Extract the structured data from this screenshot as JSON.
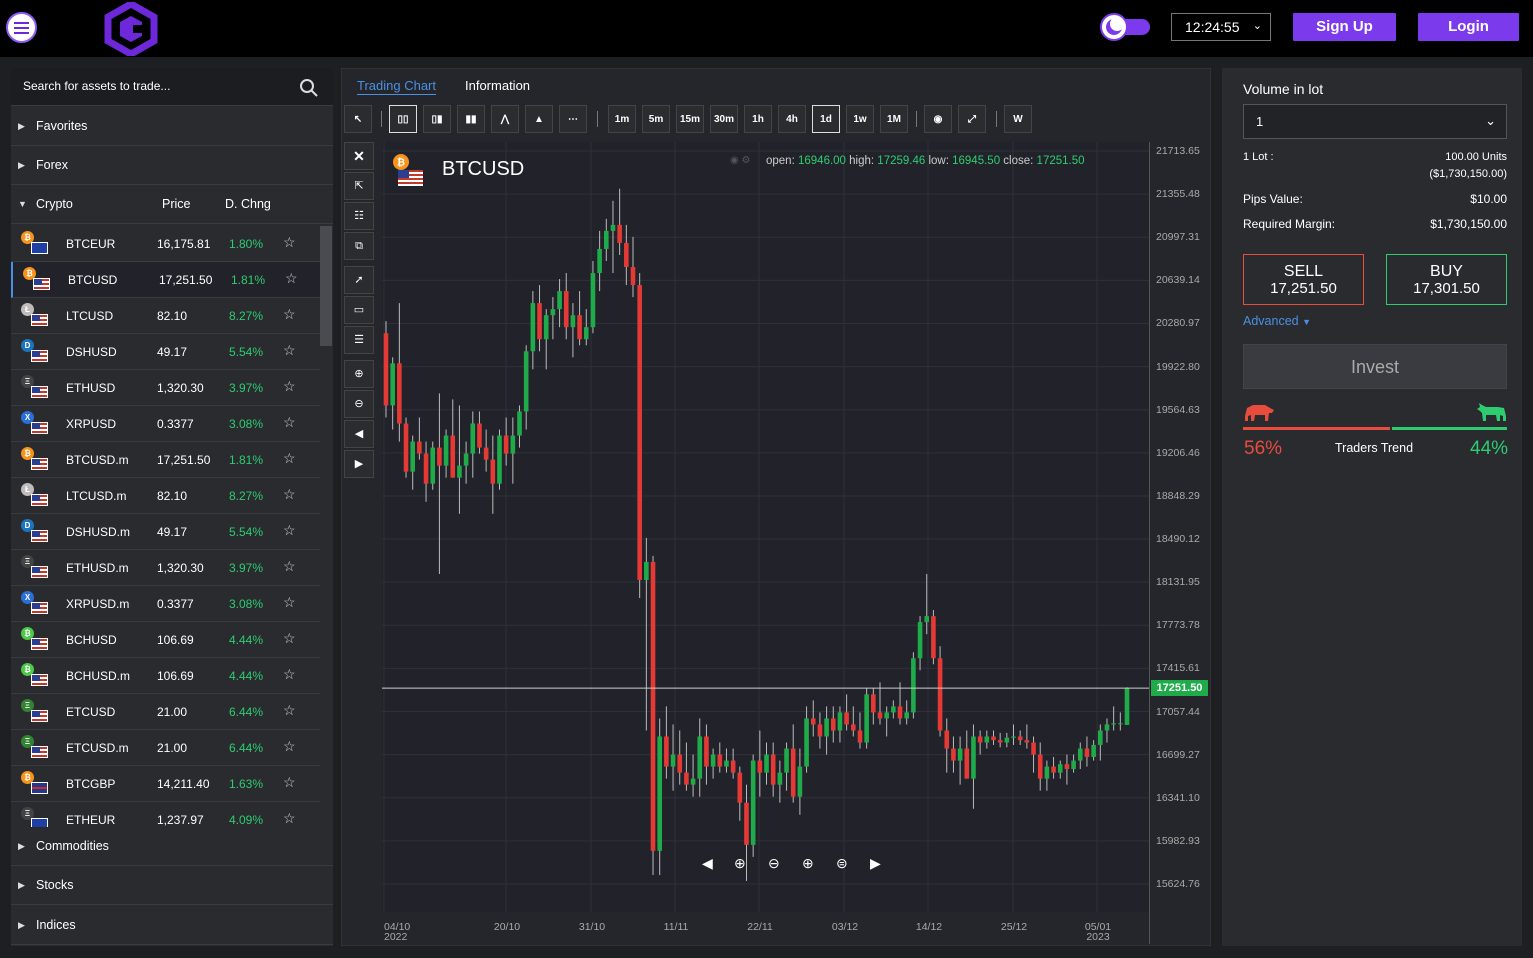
{
  "header": {
    "time": "12:24:55",
    "signup_label": "Sign Up",
    "login_label": "Login",
    "brand_color": "#7c3aed"
  },
  "sidebar": {
    "search_placeholder": "Search for assets to trade...",
    "categories_top": [
      "Favorites",
      "Forex"
    ],
    "crypto": {
      "label": "Crypto",
      "price_header": "Price",
      "change_header": "D. Chng"
    },
    "categories_bottom": [
      "Commodities",
      "Stocks",
      "Indices"
    ],
    "assets": [
      {
        "symbol": "BTCEUR",
        "price": "16,175.81",
        "change": "1.80%",
        "coin": "bitcoin",
        "flag": "eu"
      },
      {
        "symbol": "BTCUSD",
        "price": "17,251.50",
        "change": "1.81%",
        "coin": "bitcoin",
        "flag": "us"
      },
      {
        "symbol": "LTCUSD",
        "price": "82.10",
        "change": "8.27%",
        "coin": "litecoin",
        "flag": "us"
      },
      {
        "symbol": "DSHUSD",
        "price": "49.17",
        "change": "5.54%",
        "coin": "dash",
        "flag": "us"
      },
      {
        "symbol": "ETHUSD",
        "price": "1,320.30",
        "change": "3.97%",
        "coin": "ethereum",
        "flag": "us"
      },
      {
        "symbol": "XRPUSD",
        "price": "0.3377",
        "change": "3.08%",
        "coin": "ripple",
        "flag": "us"
      },
      {
        "symbol": "BTCUSD.m",
        "price": "17,251.50",
        "change": "1.81%",
        "coin": "bitcoin",
        "flag": "us"
      },
      {
        "symbol": "LTCUSD.m",
        "price": "82.10",
        "change": "8.27%",
        "coin": "litecoin",
        "flag": "us"
      },
      {
        "symbol": "DSHUSD.m",
        "price": "49.17",
        "change": "5.54%",
        "coin": "dash",
        "flag": "us"
      },
      {
        "symbol": "ETHUSD.m",
        "price": "1,320.30",
        "change": "3.97%",
        "coin": "ethereum",
        "flag": "us"
      },
      {
        "symbol": "XRPUSD.m",
        "price": "0.3377",
        "change": "3.08%",
        "coin": "ripple",
        "flag": "us"
      },
      {
        "symbol": "BCHUSD",
        "price": "106.69",
        "change": "4.44%",
        "coin": "bitcoin-cash",
        "flag": "us"
      },
      {
        "symbol": "BCHUSD.m",
        "price": "106.69",
        "change": "4.44%",
        "coin": "bitcoin-cash",
        "flag": "us"
      },
      {
        "symbol": "ETCUSD",
        "price": "21.00",
        "change": "6.44%",
        "coin": "ethereum-classic",
        "flag": "us"
      },
      {
        "symbol": "ETCUSD.m",
        "price": "21.00",
        "change": "6.44%",
        "coin": "ethereum-classic",
        "flag": "us"
      },
      {
        "symbol": "BTCGBP",
        "price": "14,211.40",
        "change": "1.63%",
        "coin": "bitcoin",
        "flag": "gb"
      },
      {
        "symbol": "ETHEUR",
        "price": "1,237.97",
        "change": "4.09%",
        "coin": "ethereum",
        "flag": "eu"
      }
    ]
  },
  "chart_panel": {
    "tabs": [
      "Trading Chart",
      "Information"
    ],
    "timeframes": [
      "1m",
      "5m",
      "15m",
      "30m",
      "1h",
      "4h",
      "1d",
      "1w",
      "1M"
    ],
    "active_timeframe": "1d",
    "w_button": "W",
    "symbol": "BTCUSD",
    "ohlc": {
      "open_label": "open:",
      "open": "16946.00",
      "high_label": "high:",
      "high": "17259.46",
      "low_label": "low:",
      "low": "16945.50",
      "close_label": "close:",
      "close": "17251.50"
    }
  },
  "chart_data": {
    "type": "candlestick",
    "y_ticks": [
      "21713.65",
      "21355.48",
      "20997.31",
      "20639.14",
      "20280.97",
      "19922.80",
      "19564.63",
      "19206.46",
      "18848.29",
      "18490.12",
      "18131.95",
      "17773.78",
      "17415.61",
      "17057.44",
      "16699.27",
      "16341.10",
      "15982.93",
      "15624.76"
    ],
    "x_ticks": [
      [
        "04/10",
        "2022"
      ],
      [
        "20/10",
        ""
      ],
      [
        "31/10",
        ""
      ],
      [
        "11/11",
        ""
      ],
      [
        "22/11",
        ""
      ],
      [
        "03/12",
        ""
      ],
      [
        "14/12",
        ""
      ],
      [
        "25/12",
        ""
      ],
      [
        "05/01",
        "2023"
      ]
    ],
    "ylim": [
      15500,
      21800
    ],
    "last_price": "17251.50",
    "candles": [
      [
        20200,
        20300,
        19500,
        19600
      ],
      [
        19600,
        20000,
        19400,
        19950
      ],
      [
        19950,
        20450,
        19300,
        19450
      ],
      [
        19450,
        19500,
        19000,
        19050
      ],
      [
        19050,
        19350,
        18900,
        19300
      ],
      [
        19300,
        19500,
        19150,
        19200
      ],
      [
        19200,
        19300,
        18800,
        18950
      ],
      [
        18950,
        19300,
        18900,
        19250
      ],
      [
        19250,
        19700,
        18200,
        19100
      ],
      [
        19100,
        19400,
        19000,
        19350
      ],
      [
        19350,
        19650,
        19000,
        19000
      ],
      [
        19000,
        19600,
        18700,
        19100
      ],
      [
        19100,
        19300,
        18950,
        19200
      ],
      [
        19200,
        19550,
        19000,
        19450
      ],
      [
        19450,
        19550,
        19200,
        19250
      ],
      [
        19250,
        19400,
        19050,
        19150
      ],
      [
        19150,
        19350,
        18700,
        18950
      ],
      [
        18950,
        19400,
        18900,
        19350
      ],
      [
        19350,
        19500,
        19100,
        19200
      ],
      [
        19200,
        19500,
        18950,
        19350
      ],
      [
        19350,
        19600,
        19250,
        19550
      ],
      [
        19550,
        20100,
        19400,
        20050
      ],
      [
        20050,
        20550,
        19900,
        20450
      ],
      [
        20450,
        20600,
        20050,
        20150
      ],
      [
        20150,
        20400,
        19900,
        20350
      ],
      [
        20350,
        20500,
        20150,
        20400
      ],
      [
        20400,
        20650,
        20250,
        20550
      ],
      [
        20550,
        20700,
        20150,
        20250
      ],
      [
        20250,
        20450,
        20000,
        20350
      ],
      [
        20350,
        20550,
        20100,
        20150
      ],
      [
        20150,
        20400,
        20100,
        20250
      ],
      [
        20250,
        20800,
        20200,
        20700
      ],
      [
        20700,
        21050,
        20550,
        20900
      ],
      [
        20900,
        21150,
        20800,
        21050
      ],
      [
        21050,
        21300,
        20700,
        21100
      ],
      [
        21100,
        21400,
        20850,
        20950
      ],
      [
        20950,
        21100,
        20600,
        20750
      ],
      [
        20750,
        21000,
        20500,
        20600
      ],
      [
        20600,
        20700,
        18000,
        18150
      ],
      [
        18150,
        18500,
        16900,
        18300
      ],
      [
        18300,
        18350,
        15700,
        15900
      ],
      [
        15900,
        17000,
        15700,
        16850
      ],
      [
        16850,
        17100,
        16500,
        16600
      ],
      [
        16600,
        16950,
        16400,
        16700
      ],
      [
        16700,
        16900,
        16450,
        16550
      ],
      [
        16550,
        16800,
        16400,
        16450
      ],
      [
        16450,
        16700,
        16350,
        16500
      ],
      [
        16500,
        17000,
        16350,
        16850
      ],
      [
        16850,
        16950,
        16450,
        16600
      ],
      [
        16600,
        16750,
        16500,
        16700
      ],
      [
        16700,
        16800,
        16550,
        16600
      ],
      [
        16600,
        16750,
        16550,
        16650
      ],
      [
        16650,
        16750,
        16500,
        16550
      ],
      [
        16550,
        16600,
        16150,
        16300
      ],
      [
        16300,
        16450,
        15650,
        15950
      ],
      [
        15950,
        16700,
        15850,
        16650
      ],
      [
        16650,
        16900,
        16350,
        16550
      ],
      [
        16550,
        16800,
        16450,
        16700
      ],
      [
        16700,
        16800,
        16350,
        16450
      ],
      [
        16450,
        16650,
        16300,
        16550
      ],
      [
        16550,
        16800,
        16400,
        16750
      ],
      [
        16750,
        16950,
        16300,
        16350
      ],
      [
        16350,
        16750,
        16200,
        16600
      ],
      [
        16600,
        17100,
        16550,
        17000
      ],
      [
        17000,
        17150,
        16850,
        16950
      ],
      [
        16950,
        17050,
        16750,
        16850
      ],
      [
        16850,
        17100,
        16700,
        17000
      ],
      [
        17000,
        17100,
        16800,
        16900
      ],
      [
        16900,
        17100,
        16800,
        17050
      ],
      [
        17050,
        17200,
        16900,
        16950
      ],
      [
        16950,
        17100,
        16850,
        16900
      ],
      [
        16900,
        17050,
        16750,
        16800
      ],
      [
        16800,
        17250,
        16750,
        17200
      ],
      [
        17200,
        17250,
        16950,
        17050
      ],
      [
        17050,
        17300,
        16950,
        17000
      ],
      [
        17000,
        17100,
        16850,
        17050
      ],
      [
        17050,
        17150,
        17000,
        17100
      ],
      [
        17100,
        17300,
        16950,
        17000
      ],
      [
        17000,
        17150,
        16950,
        17050
      ],
      [
        17050,
        17550,
        17000,
        17500
      ],
      [
        17500,
        17850,
        17400,
        17800
      ],
      [
        17800,
        18200,
        17700,
        17850
      ],
      [
        17850,
        17900,
        17450,
        17500
      ],
      [
        17500,
        17600,
        16850,
        16900
      ],
      [
        16900,
        17000,
        16550,
        16750
      ],
      [
        16750,
        16850,
        16550,
        16650
      ],
      [
        16650,
        16850,
        16450,
        16750
      ],
      [
        16750,
        16900,
        16500,
        16500
      ],
      [
        16500,
        16950,
        16250,
        16850
      ],
      [
        16850,
        16900,
        16700,
        16800
      ],
      [
        16800,
        16900,
        16750,
        16850
      ],
      [
        16850,
        16900,
        16780,
        16820
      ],
      [
        16820,
        16880,
        16760,
        16800
      ],
      [
        16800,
        16880,
        16760,
        16840
      ],
      [
        16840,
        16950,
        16780,
        16850
      ],
      [
        16850,
        16900,
        16780,
        16820
      ],
      [
        16820,
        16950,
        16750,
        16800
      ],
      [
        16800,
        16850,
        16550,
        16700
      ],
      [
        16700,
        16800,
        16400,
        16500
      ],
      [
        16500,
        16650,
        16400,
        16600
      ],
      [
        16600,
        16680,
        16500,
        16550
      ],
      [
        16550,
        16650,
        16500,
        16620
      ],
      [
        16620,
        16700,
        16450,
        16580
      ],
      [
        16580,
        16700,
        16550,
        16650
      ],
      [
        16650,
        16800,
        16580,
        16750
      ],
      [
        16750,
        16850,
        16600,
        16680
      ],
      [
        16680,
        16820,
        16650,
        16780
      ],
      [
        16780,
        16950,
        16650,
        16900
      ],
      [
        16900,
        17000,
        16800,
        16950
      ],
      [
        16950,
        17100,
        16900,
        16960
      ],
      [
        16960,
        17050,
        16900,
        16960
      ],
      [
        16946,
        17259.46,
        16945.5,
        17251.5
      ]
    ]
  },
  "right_panel": {
    "volume_label": "Volume in lot",
    "volume_value": "1",
    "lot_label": "1 Lot :",
    "lot_units": "100.00 Units",
    "lot_value": "($1,730,150.00)",
    "pips_label": "Pips Value:",
    "pips_value": "$10.00",
    "margin_label": "Required Margin:",
    "margin_value": "$1,730,150.00",
    "sell_label": "SELL",
    "sell_price": "17,251.50",
    "buy_label": "BUY",
    "buy_price": "17,301.50",
    "advanced_label": "Advanced",
    "invest_label": "Invest",
    "trend_label": "Traders Trend",
    "bear_pct": "56%",
    "bull_pct": "44%",
    "bear_share": 0.56,
    "bear_color": "#e74c3c",
    "bull_color": "#2ecc71"
  }
}
